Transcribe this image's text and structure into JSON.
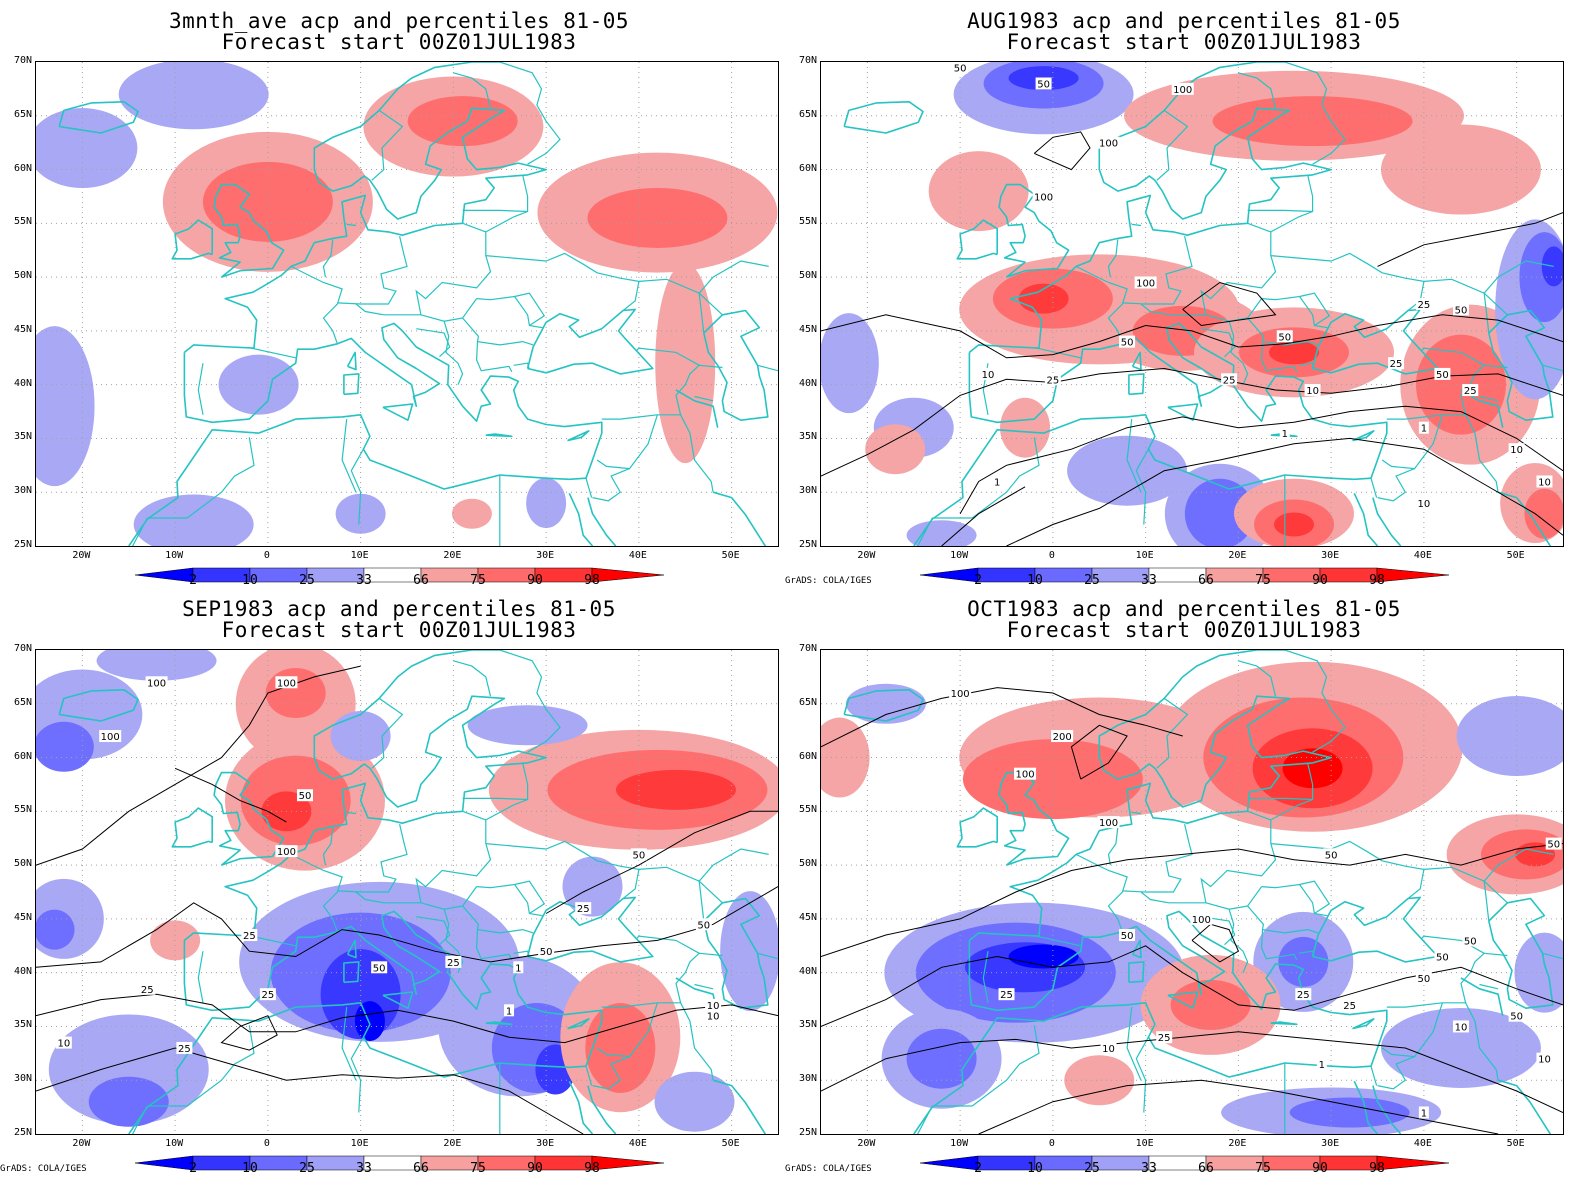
{
  "panels": [
    {
      "id": "p1",
      "title": "3mnth_ave acp and percentiles 81-05",
      "subtitle": "Forecast start 00Z01JUL1983",
      "show_credit": false,
      "contours": false
    },
    {
      "id": "p2",
      "title": "AUG1983 acp and percentiles 81-05",
      "subtitle": "Forecast start 00Z01JUL1983",
      "show_credit": true,
      "contours": true
    },
    {
      "id": "p3",
      "title": "SEP1983 acp and percentiles 81-05",
      "subtitle": "Forecast start 00Z01JUL1983",
      "show_credit": true,
      "contours": true
    },
    {
      "id": "p4",
      "title": "OCT1983 acp and percentiles 81-05",
      "subtitle": "Forecast start 00Z01JUL1983",
      "show_credit": true,
      "contours": true
    }
  ],
  "credit": "GrADS: COLA/IGES",
  "lat_labels": [
    "70N",
    "65N",
    "60N",
    "55N",
    "50N",
    "45N",
    "40N",
    "35N",
    "30N",
    "25N"
  ],
  "lon_labels": [
    "20W",
    "10W",
    "0",
    "10E",
    "20E",
    "30E",
    "40E",
    "50E"
  ],
  "colorbar": {
    "labels": [
      "2",
      "10",
      "25",
      "33",
      "66",
      "75",
      "90",
      "98"
    ],
    "colors": [
      "#0000ff",
      "#3434ff",
      "#6a6aff",
      "#a0a0f6",
      "#ffffff",
      "#f6a0a0",
      "#ff6a6a",
      "#ff3434",
      "#ff0000"
    ]
  },
  "map_extent": {
    "lon": [
      -25,
      55
    ],
    "lat": [
      25,
      70
    ]
  },
  "colors": {
    "coastline": "#26c3c3",
    "grid": "#a0a0a0",
    "contour": "#000000",
    "blue_light": "#a8a8f5",
    "blue_mid": "#6e6eff",
    "blue_dark": "#3838ff",
    "blue_deep": "#0000ff",
    "red_light": "#f5a5a5",
    "red_mid": "#ff6e6e",
    "red_dark": "#ff3a3a",
    "red_deep": "#ff0000"
  },
  "contour_labels": {
    "p2": [
      "50",
      "50",
      "100",
      "100",
      "100",
      "100",
      "50",
      "50",
      "25",
      "10",
      "25",
      "50",
      "25",
      "10",
      "1",
      "1",
      "10",
      "1",
      "25",
      "10",
      "10",
      "25",
      "50"
    ],
    "p3": [
      "100",
      "100",
      "100",
      "50",
      "100",
      "25",
      "50",
      "25",
      "10",
      "1",
      "25",
      "50",
      "25",
      "50",
      "25",
      "10",
      "1",
      "50",
      "10",
      "25"
    ],
    "p4": [
      "100",
      "200",
      "100",
      "100",
      "50",
      "50",
      "50",
      "50",
      "100",
      "50",
      "25",
      "10",
      "25",
      "50",
      "25",
      "50",
      "10",
      "1",
      "10",
      "1",
      "25"
    ]
  }
}
